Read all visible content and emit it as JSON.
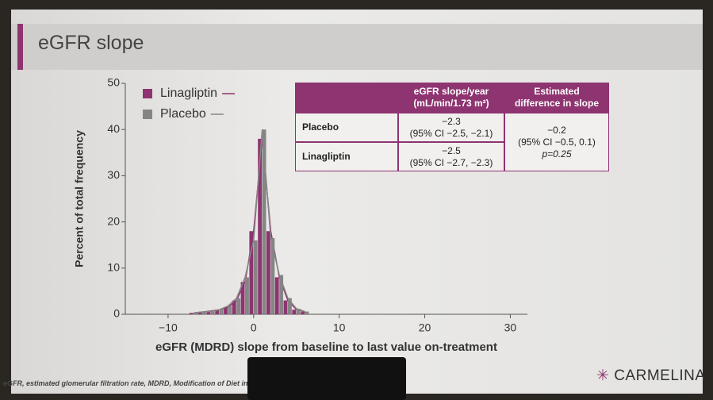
{
  "chart_data": {
    "type": "histogram",
    "title": "eGFR slope",
    "xlabel": "eGFR (MDRD) slope from baseline to last value on-treatment",
    "ylabel": "Percent of total frequency",
    "bins": [
      -7.5,
      -6.5,
      -5.5,
      -4.5,
      -3.5,
      -2.5,
      -1.5,
      -0.5,
      0.5,
      1.5,
      2.5,
      3.5,
      4.5,
      5.5,
      6.5
    ],
    "series": [
      {
        "name": "Linagliptin",
        "color": "#8e3470",
        "values": [
          0.3,
          0.5,
          0.7,
          1,
          1.5,
          3,
          7,
          18,
          38,
          18,
          8,
          3,
          1,
          0.5
        ]
      },
      {
        "name": "Placebo",
        "color": "#858585",
        "values": [
          0.3,
          0.5,
          0.6,
          1,
          1.8,
          3.5,
          8,
          16,
          40,
          16.5,
          8.5,
          3.5,
          1.2,
          0.6
        ]
      }
    ],
    "xlim": [
      -15,
      32
    ],
    "xticks": [
      {
        "value": -10,
        "label": "−10"
      },
      0,
      10,
      20,
      30
    ],
    "ylim": [
      0,
      50
    ],
    "yticks": [
      0,
      10,
      20,
      30,
      40,
      50
    ],
    "legend": "upper left"
  },
  "table": {
    "columns": [
      {
        "lines": [
          "eGFR slope/year",
          "(mL/min/1.73 m²)"
        ]
      },
      {
        "lines": [
          "Estimated",
          "difference in slope"
        ]
      }
    ],
    "rows": [
      {
        "label": "Placebo",
        "lines": [
          "−2.3",
          "(95% CI −2.5, −2.1)"
        ]
      },
      {
        "label": "Linagliptin",
        "lines": [
          "−2.5",
          "(95% CI −2.7, −2.3)"
        ]
      }
    ],
    "difference": [
      "−0.2",
      "(95% CI −0.5, 0.1)",
      "p=0.25"
    ]
  },
  "footnote": "eGFR, estimated glomerular filtration rate, MDRD, Modification of Diet in",
  "logo": "CARMELINA"
}
